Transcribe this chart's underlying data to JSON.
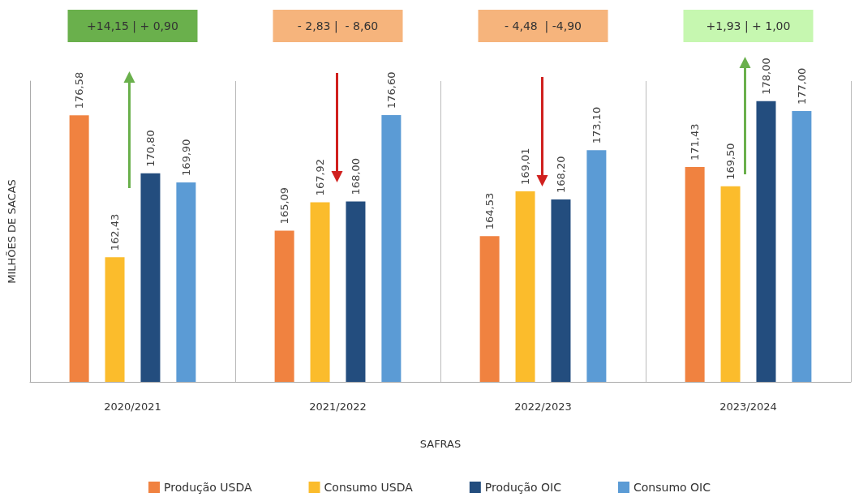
{
  "chart_data": {
    "type": "bar",
    "xlabel": "SAFRAS",
    "ylabel": "MILHÕES DE SACAS",
    "categories": [
      "2020/2021",
      "2021/2022",
      "2022/2023",
      "2023/2024"
    ],
    "series": [
      {
        "name": "Produção USDA",
        "color": "#f08240",
        "values": [
          176.58,
          165.09,
          164.53,
          171.43
        ],
        "value_labels": [
          "176,58",
          "165,09",
          "164,53",
          "171,43"
        ]
      },
      {
        "name": "Consumo USDA",
        "color": "#fbbc2c",
        "values": [
          162.43,
          167.92,
          169.01,
          169.5
        ],
        "value_labels": [
          "162,43",
          "167,92",
          "169,01",
          "169,50"
        ]
      },
      {
        "name": "Produção OIC",
        "color": "#234d7e",
        "values": [
          170.8,
          168.0,
          168.2,
          178.0
        ],
        "value_labels": [
          "170,80",
          "168,00",
          "168,20",
          "178,00"
        ]
      },
      {
        "name": "Consumo OIC",
        "color": "#5b9bd5",
        "values": [
          169.9,
          176.6,
          173.1,
          177.0
        ],
        "value_labels": [
          "169,90",
          "176,60",
          "173,10",
          "177,00"
        ]
      }
    ],
    "ylim": [
      150,
      180
    ],
    "tick_labels": "x",
    "grid": "x",
    "legend": "bottom",
    "annotations": [
      "+14,15 | + 0,90",
      "- 2,83 |  - 8,60",
      "- 4,48  | -4,90",
      "+1,93 | + 1,00"
    ]
  }
}
